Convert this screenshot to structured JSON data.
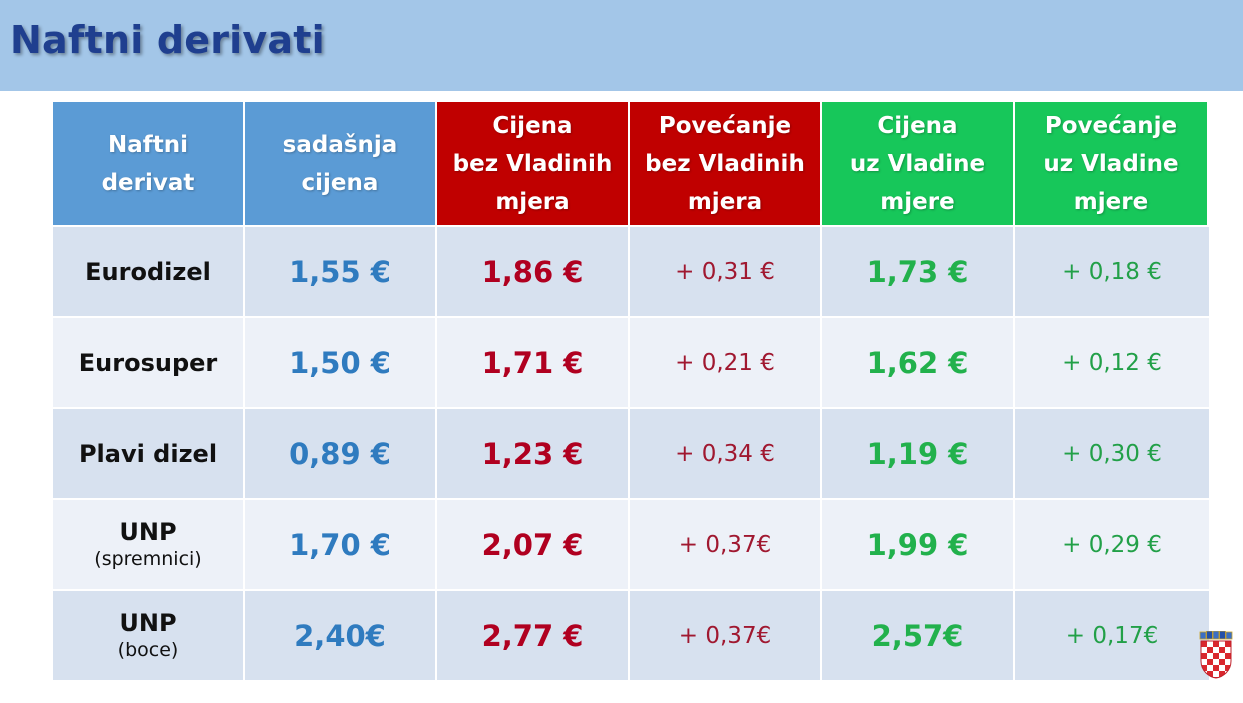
{
  "title": "Naftni derivati",
  "headers": [
    "Naftni\nderivat",
    "sadašnja\ncijena",
    "Cijena\nbez Vladinih\nmjera",
    "Povećanje\nbez Vladinih\nmjera",
    "Cijena\nuz Vladine\nmjere",
    "Povećanje\nuz Vladine\nmjere"
  ],
  "rows": [
    {
      "name": "Eurodizel",
      "sub": "",
      "current": "1,55 €",
      "price_without": "1,86 €",
      "increase_without": "+ 0,31 €",
      "price_with": "1,73 €",
      "increase_with": "+ 0,18 €"
    },
    {
      "name": "Eurosuper",
      "sub": "",
      "current": "1,50 €",
      "price_without": "1,71 €",
      "increase_without": "+ 0,21 €",
      "price_with": "1,62 €",
      "increase_with": "+ 0,12 €"
    },
    {
      "name": "Plavi dizel",
      "sub": "",
      "current": "0,89 €",
      "price_without": "1,23 €",
      "increase_without": "+ 0,34 €",
      "price_with": "1,19 €",
      "increase_with": "+ 0,30 €"
    },
    {
      "name": "UNP",
      "sub": "(spremnici)",
      "current": "1,70 €",
      "price_without": "2,07 €",
      "increase_without": "+ 0,37€",
      "price_with": "1,99 €",
      "increase_with": "+ 0,29 €"
    },
    {
      "name": "UNP",
      "sub": "(boce)",
      "current": "2,40€",
      "price_without": "2,77 €",
      "increase_without": "+ 0,37€",
      "price_with": "2,57€",
      "increase_with": "+ 0,17€"
    }
  ],
  "colors": {
    "title_bar": "#a3c6e8",
    "header_blue": "#5b9bd5",
    "header_red": "#c00000",
    "header_green": "#17c75a",
    "value_blue": "#2f7bbf",
    "value_red": "#b00020",
    "value_green": "#22b14c"
  },
  "icons": {
    "corner": "croatian-coat-of-arms-icon"
  }
}
